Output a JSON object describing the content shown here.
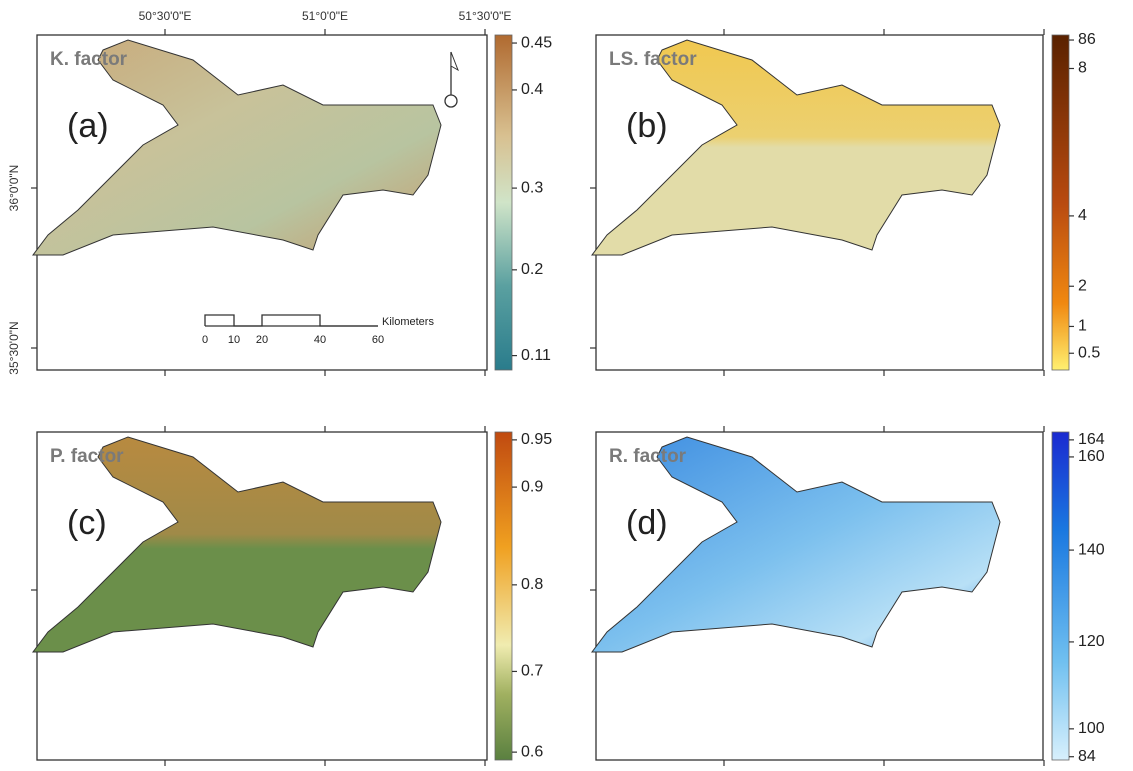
{
  "panels": [
    {
      "title": "K. factor",
      "label": "(a)",
      "colorbar_ticks": [
        0.45,
        0.4,
        0.3,
        0.2,
        0.11
      ]
    },
    {
      "title": "LS. factor",
      "label": "(b)",
      "colorbar_ticks": [
        86,
        8,
        4,
        2,
        1,
        0.5
      ]
    },
    {
      "title": "P. factor",
      "label": "(c)",
      "colorbar_ticks": [
        0.95,
        0.9,
        0.8,
        0.7,
        0.6
      ]
    },
    {
      "title": "R. factor",
      "label": "(d)",
      "colorbar_ticks": [
        164,
        160,
        140,
        120,
        100,
        84
      ]
    }
  ],
  "axes": {
    "top_labels": [
      "50°30'0\"E",
      "51°0'0\"E",
      "51°30'0\"E"
    ],
    "left_labels": [
      "36°0'0\"N",
      "35°30'0\"N"
    ]
  },
  "scale_bar": {
    "ticks": [
      0,
      10,
      20,
      40,
      60
    ],
    "unit": "Kilometers"
  }
}
